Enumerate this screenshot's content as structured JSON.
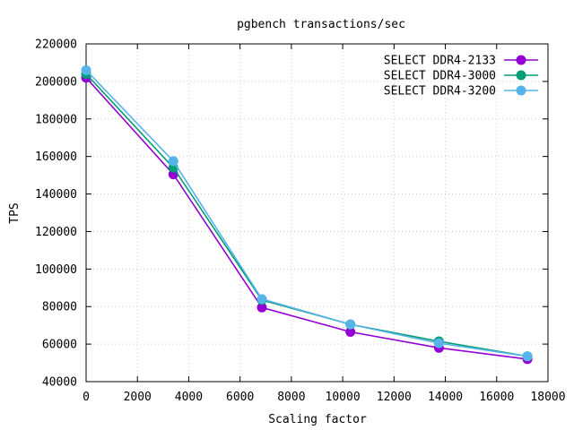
{
  "chart_data": {
    "type": "line",
    "title": "pgbench transactions/sec",
    "xlabel": "Scaling factor",
    "ylabel": "TPS",
    "xlim": [
      0,
      18000
    ],
    "ylim": [
      40000,
      220000
    ],
    "xticks": [
      0,
      2000,
      4000,
      6000,
      8000,
      10000,
      12000,
      14000,
      16000,
      18000
    ],
    "yticks": [
      40000,
      60000,
      80000,
      100000,
      120000,
      140000,
      160000,
      180000,
      200000,
      220000
    ],
    "grid": true,
    "legend_position": "top-right",
    "series": [
      {
        "name": "SELECT DDR4-2133",
        "color": "#9400d3",
        "x": [
          0,
          3400,
          6850,
          10300,
          13750,
          17200
        ],
        "y": [
          202000,
          150500,
          79500,
          66500,
          58000,
          52000
        ]
      },
      {
        "name": "SELECT DDR4-3000",
        "color": "#009e73",
        "x": [
          0,
          3400,
          6850,
          10300,
          13750,
          17200
        ],
        "y": [
          204000,
          154000,
          83500,
          70500,
          61500,
          53500
        ]
      },
      {
        "name": "SELECT DDR4-3200",
        "color": "#56b4e9",
        "x": [
          0,
          3400,
          6850,
          10300,
          13750,
          17200
        ],
        "y": [
          206000,
          157500,
          84000,
          70500,
          60500,
          53500
        ]
      }
    ]
  }
}
